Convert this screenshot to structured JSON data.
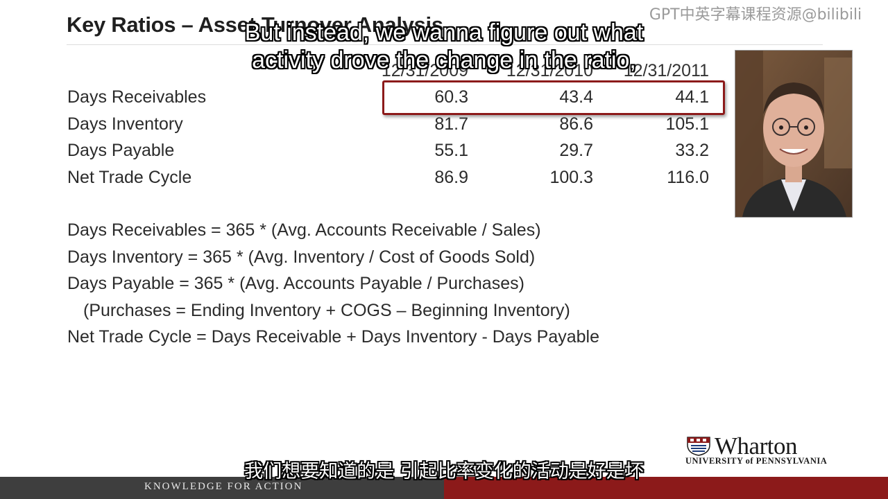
{
  "slide": {
    "title": "Key Ratios – Asset Turnover Analysis"
  },
  "watermark": "GPT中英字幕课程资源@bilibili",
  "subtitles": {
    "english_line1": "But instead, we wanna figure out what",
    "english_line2": "activity drove the change in the ratio,",
    "chinese": "我们想要知道的是 引起比率变化的活动是好是坏"
  },
  "table": {
    "columns": [
      "12/31/2009",
      "12/31/2010",
      "12/31/2011"
    ],
    "rows": [
      {
        "label": "Days Receivables",
        "values": [
          "60.3",
          "43.4",
          "44.1"
        ]
      },
      {
        "label": "Days Inventory",
        "values": [
          "81.7",
          "86.6",
          "105.1"
        ]
      },
      {
        "label": "Days Payable",
        "values": [
          "55.1",
          "29.7",
          "33.2"
        ]
      },
      {
        "label": "Net Trade Cycle",
        "values": [
          "86.9",
          "100.3",
          "116.0"
        ]
      }
    ]
  },
  "formulas": [
    "Days Receivables =  365 * (Avg. Accounts Receivable / Sales)",
    "Days Inventory = 365 * (Avg. Inventory / Cost of Goods Sold)",
    "Days Payable = 365 * (Avg. Accounts Payable / Purchases)",
    "(Purchases = Ending Inventory + COGS – Beginning Inventory)",
    "Net Trade Cycle = Days Receivable + Days Inventory - Days Payable"
  ],
  "logo": {
    "name": "Wharton",
    "university": "UNIVERSITY of PENNSYLVANIA"
  },
  "footer": {
    "tagline": "KNOWLEDGE FOR ACTION"
  },
  "colors": {
    "accent": "#8c1a1a",
    "footer_dark": "#3e3e3e"
  }
}
